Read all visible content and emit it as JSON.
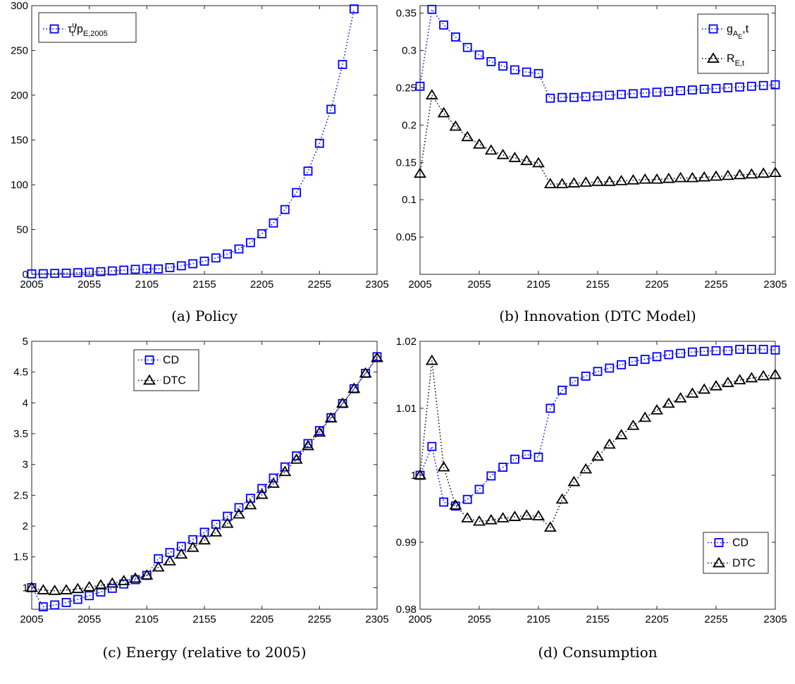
{
  "chart_data": [
    {
      "type": "line",
      "id": "a",
      "caption": "(a) Policy",
      "xlim": [
        2005,
        2305
      ],
      "ylim": [
        0,
        300
      ],
      "xticks": [
        2005,
        2055,
        2105,
        2155,
        2205,
        2255,
        2305
      ],
      "yticks": [
        0,
        50,
        100,
        150,
        200,
        250,
        300
      ],
      "ytick_labels": [
        "0",
        "50",
        "100",
        "150",
        "200",
        "250",
        "300"
      ],
      "grid": false,
      "legend_placement": "top-left",
      "x": [
        2005,
        2015,
        2025,
        2035,
        2045,
        2055,
        2065,
        2075,
        2085,
        2095,
        2105,
        2115,
        2125,
        2135,
        2145,
        2155,
        2165,
        2175,
        2185,
        2195,
        2205,
        2215,
        2225,
        2235,
        2245,
        2255,
        2265,
        2275,
        2285
      ],
      "series": [
        {
          "name": "τ_t^u/p_E,2005",
          "legend_label": {
            "main": "τ",
            "sup": "u",
            "sub": "t",
            "rest": "/p",
            "sub2": "E,2005"
          },
          "color": "#0000ff",
          "marker": "square",
          "values": [
            0.5,
            0.7,
            1.0,
            1.3,
            1.8,
            2.3,
            3.0,
            3.8,
            4.7,
            5.6,
            6.3,
            6.0,
            7.5,
            9.5,
            11.8,
            14.7,
            18.3,
            22.7,
            28.3,
            35.4,
            45.3,
            57.3,
            72.3,
            91.3,
            115.3,
            146.3,
            184.3,
            234.3,
            296.3
          ]
        }
      ]
    },
    {
      "type": "line",
      "id": "b",
      "caption": "(b) Innovation (DTC Model)",
      "xlim": [
        2005,
        2305
      ],
      "ylim": [
        0,
        0.36
      ],
      "xticks": [
        2005,
        2055,
        2105,
        2155,
        2205,
        2255,
        2305
      ],
      "yticks": [
        0.05,
        0.1,
        0.15,
        0.2,
        0.25,
        0.3,
        0.35
      ],
      "ytick_labels": [
        "0.05",
        "0.1",
        "0.15",
        "0.2",
        "0.25",
        "0.3",
        "0.35"
      ],
      "grid": false,
      "legend_placement": "top-right",
      "x": [
        2005,
        2015,
        2025,
        2035,
        2045,
        2055,
        2065,
        2075,
        2085,
        2095,
        2105,
        2115,
        2125,
        2135,
        2145,
        2155,
        2165,
        2175,
        2185,
        2195,
        2205,
        2215,
        2225,
        2235,
        2245,
        2255,
        2265,
        2275,
        2285,
        2295,
        2305
      ],
      "series": [
        {
          "name": "g_A_E,t",
          "legend_label": {
            "main": "g",
            "sub": "A",
            "subsub": "E",
            "rest": ",t"
          },
          "color": "#0000ff",
          "marker": "square",
          "values": [
            0.252,
            0.355,
            0.334,
            0.318,
            0.304,
            0.294,
            0.285,
            0.279,
            0.274,
            0.271,
            0.269,
            0.236,
            0.237,
            0.237,
            0.238,
            0.239,
            0.24,
            0.241,
            0.242,
            0.243,
            0.244,
            0.245,
            0.246,
            0.247,
            0.248,
            0.249,
            0.25,
            0.251,
            0.252,
            0.253,
            0.254
          ]
        },
        {
          "name": "R_E,t",
          "legend_label": {
            "main": "R",
            "sub": "E,t"
          },
          "color": "#000000",
          "marker": "triangle",
          "values": [
            0.135,
            0.24,
            0.216,
            0.198,
            0.184,
            0.174,
            0.166,
            0.16,
            0.156,
            0.152,
            0.149,
            0.121,
            0.121,
            0.122,
            0.123,
            0.124,
            0.124,
            0.125,
            0.126,
            0.127,
            0.127,
            0.128,
            0.129,
            0.129,
            0.13,
            0.131,
            0.132,
            0.133,
            0.134,
            0.135,
            0.136
          ]
        }
      ]
    },
    {
      "type": "line",
      "id": "c",
      "caption": "(c) Energy (relative to 2005)",
      "xlim": [
        2005,
        2305
      ],
      "ylim": [
        0.65,
        5
      ],
      "xticks": [
        2005,
        2055,
        2105,
        2155,
        2205,
        2255,
        2305
      ],
      "yticks": [
        1,
        1.5,
        2,
        2.5,
        3,
        3.5,
        4,
        4.5,
        5
      ],
      "ytick_labels": [
        "1",
        "1.5",
        "2",
        "2.5",
        "3",
        "3.5",
        "4",
        "4.5",
        "5"
      ],
      "grid": false,
      "legend_placement": "top-center",
      "x": [
        2005,
        2015,
        2025,
        2035,
        2045,
        2055,
        2065,
        2075,
        2085,
        2095,
        2105,
        2115,
        2125,
        2135,
        2145,
        2155,
        2165,
        2175,
        2185,
        2195,
        2205,
        2215,
        2225,
        2235,
        2245,
        2255,
        2265,
        2275,
        2285,
        2295,
        2305
      ],
      "series": [
        {
          "name": "CD",
          "color": "#0000ff",
          "marker": "square",
          "values": [
            1.0,
            0.69,
            0.72,
            0.76,
            0.81,
            0.87,
            0.93,
            0.99,
            1.06,
            1.13,
            1.2,
            1.47,
            1.57,
            1.67,
            1.78,
            1.9,
            2.03,
            2.16,
            2.3,
            2.45,
            2.61,
            2.78,
            2.96,
            3.14,
            3.34,
            3.55,
            3.76,
            3.99,
            4.23,
            4.48,
            4.75
          ]
        },
        {
          "name": "DTC",
          "color": "#000000",
          "marker": "triangle",
          "values": [
            1.0,
            0.96,
            0.95,
            0.96,
            0.98,
            1.01,
            1.04,
            1.07,
            1.11,
            1.15,
            1.2,
            1.33,
            1.43,
            1.54,
            1.65,
            1.77,
            1.9,
            2.04,
            2.19,
            2.34,
            2.51,
            2.69,
            2.88,
            3.08,
            3.3,
            3.52,
            3.75,
            3.99,
            4.23,
            4.48,
            4.73
          ]
        }
      ]
    },
    {
      "type": "line",
      "id": "d",
      "caption": "(d) Consumption",
      "xlim": [
        2005,
        2305
      ],
      "ylim": [
        0.98,
        1.02
      ],
      "xticks": [
        2005,
        2055,
        2105,
        2155,
        2205,
        2255,
        2305
      ],
      "yticks": [
        0.98,
        0.99,
        1,
        1.01,
        1.02
      ],
      "ytick_labels": [
        "0.98",
        "0.99",
        "1",
        "1.01",
        "1.02"
      ],
      "grid": false,
      "legend_placement": "bottom-right",
      "x": [
        2005,
        2015,
        2025,
        2035,
        2045,
        2055,
        2065,
        2075,
        2085,
        2095,
        2105,
        2115,
        2125,
        2135,
        2145,
        2155,
        2165,
        2175,
        2185,
        2195,
        2205,
        2215,
        2225,
        2235,
        2245,
        2255,
        2265,
        2275,
        2285,
        2295,
        2305
      ],
      "series": [
        {
          "name": "CD",
          "color": "#0000ff",
          "marker": "square",
          "values": [
            1.0,
            1.0043,
            0.996,
            0.9954,
            0.9964,
            0.9979,
            0.9999,
            1.0012,
            1.0024,
            1.0031,
            1.0027,
            1.01,
            1.0127,
            1.014,
            1.0148,
            1.0155,
            1.016,
            1.0165,
            1.017,
            1.0173,
            1.0177,
            1.018,
            1.0182,
            1.0184,
            1.0185,
            1.0186,
            1.0186,
            1.0188,
            1.0188,
            1.0188,
            1.0187
          ]
        },
        {
          "name": "DTC",
          "color": "#000000",
          "marker": "triangle",
          "values": [
            1.0,
            1.0171,
            1.0012,
            0.9955,
            0.9936,
            0.9931,
            0.9933,
            0.9936,
            0.9938,
            0.994,
            0.9939,
            0.9922,
            0.9964,
            0.999,
            1.0009,
            1.0028,
            1.0046,
            1.006,
            1.0074,
            1.0086,
            1.0097,
            1.0107,
            1.0115,
            1.0122,
            1.0128,
            1.0133,
            1.0138,
            1.0142,
            1.0145,
            1.0148,
            1.015
          ]
        }
      ]
    }
  ]
}
